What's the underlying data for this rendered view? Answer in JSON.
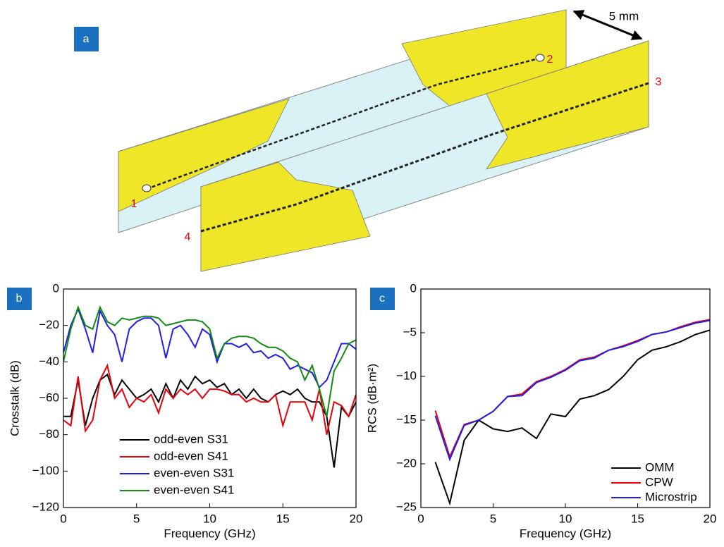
{
  "panel_a": {
    "label": "a",
    "ports": [
      "1",
      "2",
      "3",
      "4"
    ],
    "dimension": "5 mm"
  },
  "chart_data": [
    {
      "type": "line",
      "panel_label": "b",
      "xlabel": "Frequency (GHz)",
      "ylabel": "Crosstalk (dB)",
      "xlim": [
        0,
        20
      ],
      "ylim": [
        -120,
        0
      ],
      "xticks": [
        0,
        5,
        10,
        15,
        20
      ],
      "yticks": [
        {
          "value": -120,
          "label": "−120"
        },
        {
          "value": -100,
          "label": "−100"
        },
        {
          "value": -80,
          "label": "−80"
        },
        {
          "value": -60,
          "label": "−60"
        },
        {
          "value": -40,
          "label": "−40"
        },
        {
          "value": -20,
          "label": "−20"
        },
        0
      ],
      "legend": "lower left",
      "x": [
        0,
        0.5,
        1,
        1.5,
        2,
        2.5,
        3,
        3.5,
        4,
        4.5,
        5,
        5.5,
        6,
        6.5,
        7,
        7.5,
        8,
        8.5,
        9,
        9.5,
        10,
        10.5,
        11,
        11.5,
        12,
        12.5,
        13,
        13.5,
        14,
        14.5,
        15,
        15.5,
        16,
        16.5,
        17,
        17.5,
        18,
        18.5,
        19,
        19.5,
        20
      ],
      "series": [
        {
          "name": "odd-even S31",
          "color": "#000000",
          "values": [
            -70,
            -70,
            -50,
            -75,
            -60,
            -50,
            -47,
            -58,
            -50,
            -55,
            -60,
            -58,
            -55,
            -62,
            -52,
            -60,
            -50,
            -55,
            -48,
            -52,
            -50,
            -54,
            -52,
            -58,
            -55,
            -60,
            -55,
            -60,
            -62,
            -58,
            -56,
            -58,
            -55,
            -60,
            -62,
            -62,
            -70,
            -98,
            -65,
            -70,
            -62
          ]
        },
        {
          "name": "odd-even S41",
          "color": "#e8000b",
          "values": [
            -72,
            -75,
            -48,
            -78,
            -72,
            -50,
            -42,
            -60,
            -55,
            -65,
            -60,
            -62,
            -58,
            -68,
            -55,
            -60,
            -55,
            -58,
            -55,
            -60,
            -55,
            -55,
            -56,
            -58,
            -58,
            -62,
            -60,
            -62,
            -62,
            -58,
            -75,
            -62,
            -62,
            -62,
            -72,
            -55,
            -80,
            -62,
            -64,
            -70,
            -58
          ]
        },
        {
          "name": "even-even S31",
          "color": "#1f1fe8",
          "values": [
            -35,
            -20,
            -11,
            -22,
            -35,
            -12,
            -20,
            -25,
            -40,
            -22,
            -18,
            -16,
            -16,
            -20,
            -38,
            -22,
            -20,
            -25,
            -32,
            -22,
            -25,
            -40,
            -30,
            -30,
            -32,
            -30,
            -35,
            -34,
            -38,
            -36,
            -38,
            -44,
            -42,
            -44,
            -46,
            -54,
            -50,
            -40,
            -30,
            -30,
            -33
          ]
        },
        {
          "name": "even-even S41",
          "color": "#138a13",
          "values": [
            -40,
            -22,
            -10,
            -20,
            -22,
            -10,
            -18,
            -20,
            -16,
            -17,
            -16,
            -15,
            -15,
            -16,
            -20,
            -19,
            -18,
            -17,
            -17,
            -18,
            -22,
            -38,
            -30,
            -27,
            -26,
            -26,
            -27,
            -30,
            -32,
            -32,
            -34,
            -38,
            -40,
            -50,
            -42,
            -55,
            -70,
            -45,
            -38,
            -30,
            -28
          ]
        }
      ]
    },
    {
      "type": "line",
      "panel_label": "c",
      "xlabel": "Frequency (GHz)",
      "ylabel": "RCS (dB·m²)",
      "xlim": [
        0,
        20
      ],
      "ylim": [
        -25,
        0
      ],
      "xticks": [
        0,
        5,
        10,
        15,
        20
      ],
      "yticks": [
        {
          "value": -25,
          "label": "−25"
        },
        {
          "value": -20,
          "label": "−20"
        },
        {
          "value": -15,
          "label": "−15"
        },
        {
          "value": -10,
          "label": "−10"
        },
        {
          "value": -5,
          "label": "−5"
        },
        0
      ],
      "legend": "lower right",
      "x": [
        1,
        2,
        3,
        4,
        5,
        6,
        7,
        8,
        9,
        10,
        11,
        12,
        13,
        14,
        15,
        16,
        17,
        18,
        19,
        20
      ],
      "series": [
        {
          "name": "OMM",
          "color": "#000000",
          "values": [
            -19.8,
            -24.5,
            -17.3,
            -15,
            -16,
            -16.3,
            -15.9,
            -17.1,
            -14.3,
            -14.6,
            -12.6,
            -12.2,
            -11.5,
            -10,
            -8.1,
            -7,
            -6.6,
            -6,
            -5.2,
            -4.7
          ]
        },
        {
          "name": "CPW",
          "color": "#e8000b",
          "values": [
            -13.9,
            -19.2,
            -15.5,
            -15,
            -14,
            -12.3,
            -12,
            -10.6,
            -10,
            -9.2,
            -8.1,
            -7.8,
            -7,
            -6.5,
            -5.9,
            -5.2,
            -4.9,
            -4.3,
            -3.8,
            -3.5
          ]
        },
        {
          "name": "Microstrip",
          "color": "#1f1fe8",
          "values": [
            -14.5,
            -19.5,
            -15.6,
            -15,
            -14,
            -12.3,
            -12.2,
            -10.7,
            -10.1,
            -9.3,
            -8.2,
            -7.9,
            -7,
            -6.6,
            -6,
            -5.2,
            -4.9,
            -4.4,
            -3.9,
            -3.6
          ]
        }
      ]
    }
  ]
}
